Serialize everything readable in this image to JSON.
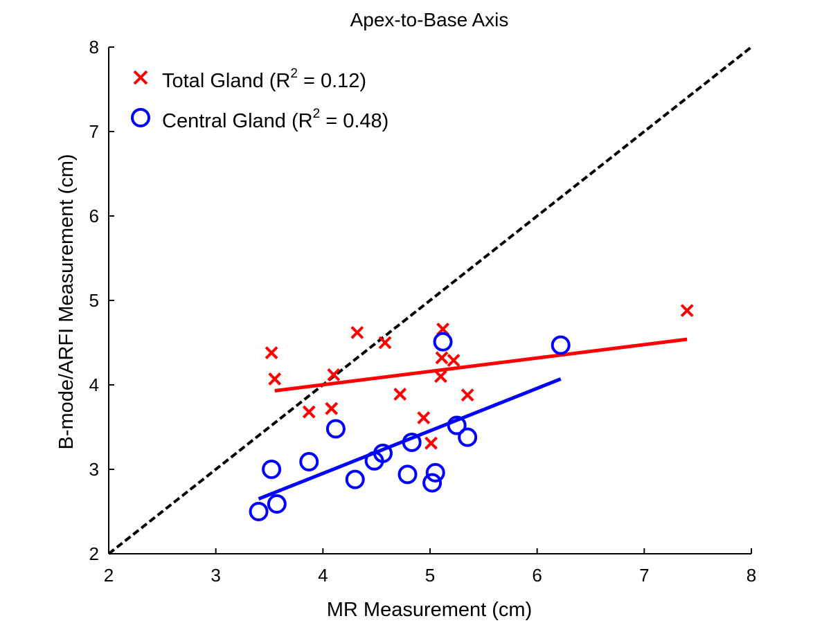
{
  "chart_data": {
    "type": "scatter",
    "title": "Apex-to-Base Axis",
    "xlabel": "MR Measurement (cm)",
    "ylabel": "B-mode/ARFI Measurement (cm)",
    "xlim": [
      2,
      8
    ],
    "ylim": [
      2,
      8
    ],
    "xticks": [
      2,
      3,
      4,
      5,
      6,
      7,
      8
    ],
    "yticks": [
      2,
      3,
      4,
      5,
      6,
      7,
      8
    ],
    "grid": false,
    "legend_position": "top-left",
    "identity_line": {
      "from": [
        2,
        2
      ],
      "to": [
        8,
        8
      ],
      "color": "#000000",
      "style": "dashed"
    },
    "series": [
      {
        "name": "Total Gland (R",
        "name_sup": "2",
        "name_tail": " = 0.12)",
        "marker": "x",
        "color": "#ff0000",
        "x": [
          3.52,
          3.55,
          3.87,
          4.08,
          4.1,
          4.32,
          4.58,
          4.72,
          4.94,
          5.01,
          5.1,
          5.11,
          5.12,
          5.22,
          5.35,
          7.4
        ],
        "y": [
          4.38,
          4.07,
          3.68,
          3.72,
          4.12,
          4.62,
          4.5,
          3.89,
          3.61,
          3.31,
          4.1,
          4.32,
          4.66,
          4.29,
          3.88,
          4.88
        ],
        "fit": {
          "x": [
            3.55,
            7.4
          ],
          "y": [
            3.93,
            4.54
          ]
        }
      },
      {
        "name": "Central Gland (R",
        "name_sup": "2",
        "name_tail": " = 0.48)",
        "marker": "o",
        "color": "#0000ff",
        "x": [
          3.4,
          3.52,
          3.57,
          3.87,
          4.12,
          4.3,
          4.48,
          4.56,
          4.79,
          4.83,
          5.02,
          5.05,
          5.12,
          5.25,
          5.35,
          6.22
        ],
        "y": [
          2.5,
          3.0,
          2.59,
          3.09,
          3.48,
          2.88,
          3.1,
          3.19,
          2.94,
          3.32,
          2.84,
          2.96,
          4.51,
          3.52,
          3.38,
          4.47
        ],
        "fit": {
          "x": [
            3.4,
            6.22
          ],
          "y": [
            2.65,
            4.07
          ]
        }
      }
    ]
  }
}
